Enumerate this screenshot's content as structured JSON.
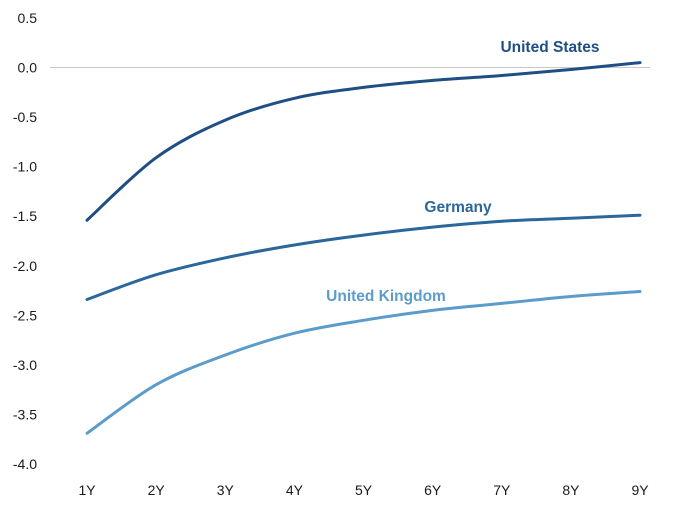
{
  "chart_data": {
    "type": "line",
    "title": "",
    "xlabel": "",
    "ylabel": "",
    "categories": [
      "1Y",
      "2Y",
      "3Y",
      "4Y",
      "5Y",
      "6Y",
      "7Y",
      "8Y",
      "9Y"
    ],
    "ylim": [
      -4.0,
      0.5
    ],
    "yticks": [
      "0.5",
      "0.0",
      "-0.5",
      "-1.0",
      "-1.5",
      "-2.0",
      "-2.5",
      "-3.0",
      "-3.5",
      "-4.0"
    ],
    "grid": false,
    "zero_line": true,
    "legend": "inline labels next to lines",
    "series": [
      {
        "name": "United States",
        "color": "#1f4e85",
        "values": [
          -1.54,
          -0.91,
          -0.53,
          -0.31,
          -0.2,
          -0.13,
          -0.08,
          -0.02,
          0.05
        ]
      },
      {
        "name": "Germany",
        "color": "#2a679b",
        "values": [
          -2.34,
          -2.09,
          -1.92,
          -1.79,
          -1.69,
          -1.61,
          -1.55,
          -1.52,
          -1.49
        ]
      },
      {
        "name": "United Kingdom",
        "color": "#5b9ccb",
        "values": [
          -3.69,
          -3.2,
          -2.9,
          -2.68,
          -2.55,
          -2.45,
          -2.38,
          -2.31,
          -2.26
        ]
      }
    ]
  }
}
